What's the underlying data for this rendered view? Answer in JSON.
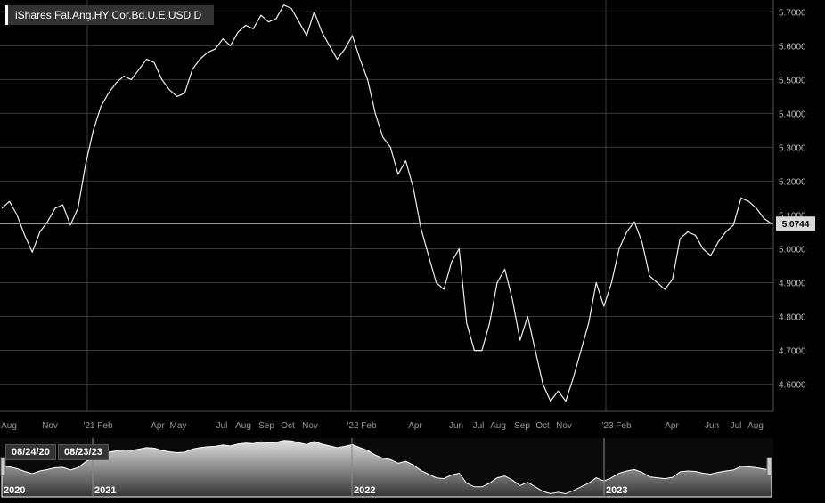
{
  "chart_data": {
    "type": "line",
    "title": "iShares Fal.Ang.HY Cor.Bd.U.E.USD D",
    "current_value": "5.0744",
    "ylim": [
      4.52,
      5.735
    ],
    "y_ticks": [
      "5.7000",
      "5.6000",
      "5.5000",
      "5.4000",
      "5.3000",
      "5.2000",
      "5.1000",
      "5.0000",
      "4.9000",
      "4.8000",
      "4.7000",
      "4.6000"
    ],
    "x_ticks": [
      "Aug",
      "Nov",
      "'21 Feb",
      "Apr",
      "May",
      "Jul",
      "Aug",
      "Sep",
      "Oct",
      "Nov",
      "'22 Feb",
      "Apr",
      "Jun",
      "Jul",
      "Aug",
      "Sep",
      "Oct",
      "Nov",
      "'23 Feb",
      "Apr",
      "Jun",
      "Jul",
      "Aug"
    ],
    "grid": true,
    "series": [
      {
        "values": [
          5.12,
          5.14,
          5.1,
          5.04,
          4.99,
          5.05,
          5.08,
          5.12,
          5.13,
          5.07,
          5.12,
          5.25,
          5.35,
          5.42,
          5.46,
          5.49,
          5.51,
          5.5,
          5.53,
          5.56,
          5.55,
          5.5,
          5.47,
          5.45,
          5.46,
          5.53,
          5.56,
          5.58,
          5.59,
          5.62,
          5.6,
          5.64,
          5.66,
          5.65,
          5.69,
          5.67,
          5.68,
          5.72,
          5.71,
          5.67,
          5.63,
          5.7,
          5.64,
          5.6,
          5.56,
          5.59,
          5.63,
          5.56,
          5.5,
          5.4,
          5.33,
          5.3,
          5.22,
          5.26,
          5.18,
          5.06,
          4.98,
          4.9,
          4.88,
          4.96,
          5.0,
          4.78,
          4.7,
          4.7,
          4.78,
          4.9,
          4.94,
          4.85,
          4.73,
          4.8,
          4.7,
          4.6,
          4.55,
          4.58,
          4.55,
          4.62,
          4.7,
          4.78,
          4.9,
          4.83,
          4.9,
          5.0,
          5.05,
          5.08,
          5.02,
          4.92,
          4.9,
          4.88,
          4.91,
          5.03,
          5.05,
          5.04,
          5.0,
          4.98,
          5.02,
          5.05,
          5.07,
          5.15,
          5.14,
          5.12,
          5.09,
          5.0744
        ]
      }
    ],
    "navigator": {
      "start_label": "08/24/20",
      "end_label": "08/23/23",
      "years": [
        "2020",
        "2021",
        "2022",
        "2023"
      ]
    }
  }
}
